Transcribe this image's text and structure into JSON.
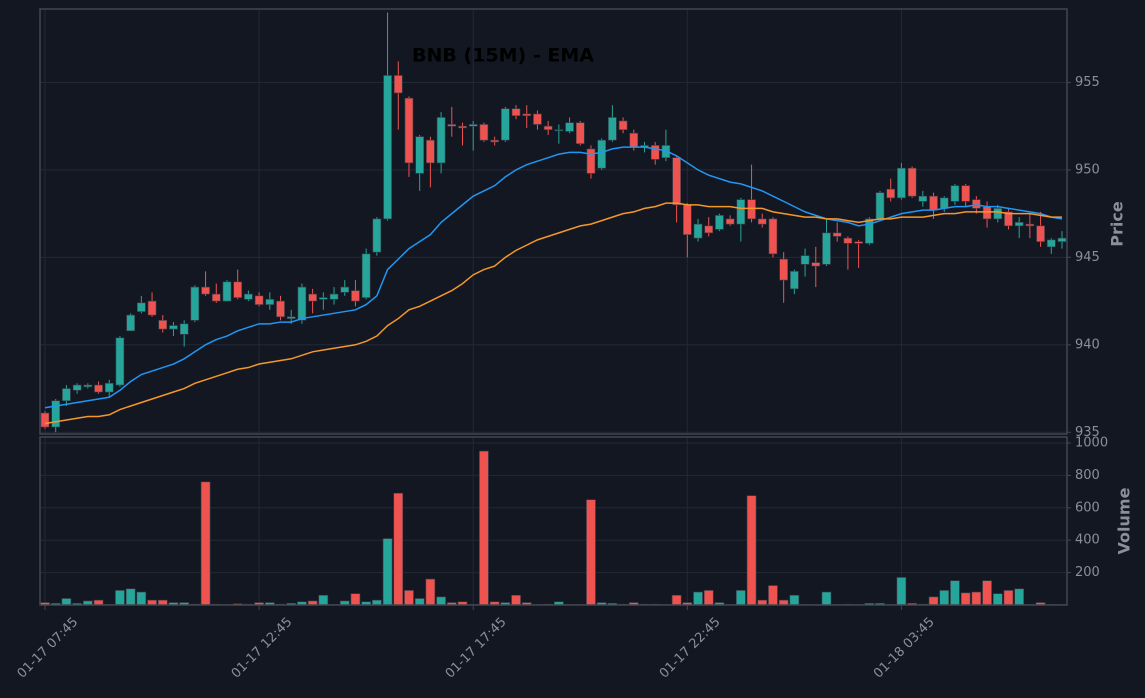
{
  "chart_data": [
    {
      "type": "candlestick",
      "title": "BNB (15M) - EMA",
      "y_label": "Price",
      "categories": [
        "01-17 07:45",
        null,
        null,
        null,
        null,
        null,
        null,
        null,
        null,
        null,
        null,
        null,
        null,
        null,
        null,
        null,
        null,
        null,
        null,
        null,
        "01-17 12:45",
        null,
        null,
        null,
        null,
        null,
        null,
        null,
        null,
        null,
        null,
        null,
        null,
        null,
        null,
        null,
        null,
        null,
        null,
        null,
        "01-17 17:45",
        null,
        null,
        null,
        null,
        null,
        null,
        null,
        null,
        null,
        null,
        null,
        null,
        null,
        null,
        null,
        null,
        null,
        null,
        null,
        "01-17 22:45",
        null,
        null,
        null,
        null,
        null,
        null,
        null,
        null,
        null,
        null,
        null,
        null,
        null,
        null,
        null,
        null,
        null,
        null,
        null,
        "01-18 03:45",
        null,
        null,
        null,
        null,
        null,
        null,
        null,
        null,
        null,
        null,
        null,
        null,
        null,
        null,
        null
      ],
      "open": [
        936.1,
        935.3,
        936.8,
        937.4,
        937.6,
        937.7,
        937.3,
        937.7,
        940.8,
        941.9,
        942.5,
        941.4,
        940.9,
        940.6,
        941.4,
        943.3,
        942.9,
        942.5,
        943.6,
        942.6,
        942.8,
        942.3,
        942.5,
        941.5,
        941.4,
        942.9,
        942.6,
        942.6,
        943.0,
        943.1,
        942.7,
        945.3,
        947.2,
        955.4,
        954.1,
        949.8,
        951.7,
        950.4,
        952.6,
        952.5,
        952.5,
        952.6,
        951.7,
        951.7,
        953.5,
        953.2,
        953.2,
        952.5,
        952.3,
        952.2,
        952.7,
        951.2,
        950.1,
        951.7,
        952.8,
        952.1,
        951.3,
        951.4,
        950.7,
        950.7,
        948.0,
        946.1,
        946.8,
        946.6,
        947.2,
        946.9,
        948.3,
        947.2,
        947.2,
        944.9,
        943.2,
        944.6,
        944.7,
        944.6,
        946.4,
        946.1,
        945.9,
        945.8,
        947.2,
        948.9,
        948.4,
        950.1,
        948.2,
        948.5,
        947.8,
        948.2,
        949.1,
        948.3,
        947.9,
        947.2,
        947.6,
        946.8,
        946.9,
        946.8,
        945.6,
        945.9
      ],
      "high": [
        936.2,
        936.9,
        937.7,
        937.8,
        937.8,
        937.9,
        938.0,
        940.5,
        941.8,
        942.8,
        943.0,
        941.7,
        941.3,
        941.4,
        943.4,
        944.2,
        943.5,
        943.7,
        944.3,
        943.1,
        943.0,
        943.0,
        942.8,
        942.0,
        943.5,
        943.2,
        943.0,
        943.3,
        943.7,
        943.7,
        945.5,
        947.3,
        959.0,
        956.2,
        954.2,
        952.0,
        951.9,
        953.3,
        953.6,
        952.7,
        952.8,
        952.7,
        951.9,
        953.6,
        953.7,
        953.7,
        953.4,
        952.8,
        952.6,
        953.0,
        952.8,
        951.4,
        951.8,
        953.7,
        953.0,
        952.3,
        951.6,
        951.6,
        952.3,
        950.8,
        948.1,
        947.2,
        947.3,
        947.5,
        947.4,
        948.4,
        950.3,
        947.5,
        947.3,
        945.3,
        944.3,
        945.5,
        945.6,
        947.2,
        947.0,
        946.2,
        946.0,
        947.3,
        948.8,
        949.5,
        950.4,
        950.2,
        948.8,
        948.7,
        948.5,
        949.2,
        949.2,
        948.5,
        948.2,
        948.0,
        947.8,
        947.3,
        947.5,
        947.6,
        946.1,
        946.5
      ],
      "low": [
        935.2,
        935.0,
        936.5,
        937.2,
        937.5,
        937.2,
        937.0,
        937.6,
        940.8,
        941.8,
        941.6,
        940.7,
        940.5,
        939.9,
        941.3,
        942.8,
        942.4,
        942.5,
        942.6,
        942.5,
        942.2,
        942.0,
        941.4,
        941.2,
        941.2,
        941.8,
        942.0,
        942.3,
        942.8,
        942.2,
        942.6,
        945.1,
        947.1,
        952.3,
        949.6,
        948.8,
        949.0,
        949.8,
        951.9,
        951.4,
        951.1,
        951.6,
        951.4,
        951.6,
        952.9,
        952.4,
        952.3,
        952.0,
        951.5,
        952.1,
        951.4,
        949.5,
        950.0,
        951.6,
        952.1,
        951.1,
        951.0,
        950.3,
        950.5,
        947.0,
        945.0,
        945.9,
        946.2,
        946.5,
        946.8,
        945.9,
        947.0,
        946.7,
        945.0,
        942.4,
        942.9,
        943.9,
        943.3,
        944.5,
        945.9,
        944.3,
        944.4,
        945.7,
        947.1,
        948.2,
        948.3,
        948.4,
        947.9,
        947.2,
        947.6,
        948.0,
        947.9,
        947.5,
        946.7,
        947.0,
        946.6,
        946.1,
        946.1,
        945.6,
        945.2,
        945.5
      ],
      "close": [
        935.3,
        936.8,
        937.5,
        937.7,
        937.7,
        937.3,
        937.8,
        940.4,
        941.7,
        942.4,
        941.7,
        940.9,
        941.1,
        941.2,
        943.3,
        942.9,
        942.5,
        943.6,
        942.7,
        942.9,
        942.3,
        942.6,
        941.6,
        941.6,
        943.3,
        942.5,
        942.7,
        942.9,
        943.3,
        942.5,
        945.2,
        947.2,
        955.4,
        954.4,
        950.4,
        951.9,
        950.4,
        953.0,
        952.5,
        952.4,
        952.6,
        951.7,
        951.6,
        953.5,
        953.1,
        953.1,
        952.6,
        952.3,
        952.3,
        952.7,
        951.5,
        949.8,
        951.7,
        953.0,
        952.3,
        951.3,
        951.4,
        950.6,
        951.4,
        948.0,
        946.3,
        946.9,
        946.4,
        947.4,
        946.9,
        948.3,
        947.2,
        946.9,
        945.2,
        943.7,
        944.2,
        945.1,
        944.5,
        946.4,
        946.2,
        945.8,
        945.8,
        947.2,
        948.7,
        948.4,
        950.1,
        948.5,
        948.5,
        947.7,
        948.4,
        949.1,
        948.2,
        947.8,
        947.2,
        947.8,
        946.8,
        947.0,
        946.8,
        945.9,
        946.0,
        946.1
      ],
      "up_color": "#26a69a",
      "down_color": "#ef5350",
      "series": [
        {
          "color": "#2196f3",
          "values": [
            936.4,
            936.5,
            936.6,
            936.7,
            936.8,
            936.9,
            937.0,
            937.4,
            937.9,
            938.3,
            938.5,
            938.7,
            938.9,
            939.2,
            939.6,
            940.0,
            940.3,
            940.5,
            940.8,
            941.0,
            941.2,
            941.2,
            941.3,
            941.3,
            941.5,
            941.6,
            941.7,
            941.8,
            941.9,
            942.0,
            942.3,
            942.8,
            944.3,
            944.9,
            945.5,
            945.9,
            946.3,
            947.0,
            947.5,
            948.0,
            948.5,
            948.8,
            949.1,
            949.6,
            950.0,
            950.3,
            950.5,
            950.7,
            950.9,
            951.0,
            951.0,
            950.9,
            951.0,
            951.2,
            951.3,
            951.3,
            951.3,
            951.2,
            951.1,
            950.8,
            950.4,
            950.0,
            949.7,
            949.5,
            949.3,
            949.2,
            949.0,
            948.8,
            948.5,
            948.2,
            947.9,
            947.6,
            947.4,
            947.2,
            947.1,
            947.0,
            946.8,
            946.9,
            947.1,
            947.3,
            947.5,
            947.6,
            947.7,
            947.7,
            947.8,
            947.9,
            947.9,
            948.0,
            947.9,
            947.9,
            947.8,
            947.7,
            947.6,
            947.5,
            947.3,
            947.2
          ]
        },
        {
          "color": "#f5972a",
          "values": [
            935.5,
            935.6,
            935.7,
            935.8,
            935.9,
            935.9,
            936.0,
            936.3,
            936.5,
            936.7,
            936.9,
            937.1,
            937.3,
            937.5,
            937.8,
            938.0,
            938.2,
            938.4,
            938.6,
            938.7,
            938.9,
            939.0,
            939.1,
            939.2,
            939.4,
            939.6,
            939.7,
            939.8,
            939.9,
            940.0,
            940.2,
            940.5,
            941.1,
            941.5,
            942.0,
            942.2,
            942.5,
            942.8,
            943.1,
            943.5,
            944.0,
            944.3,
            944.5,
            945.0,
            945.4,
            945.7,
            946.0,
            946.2,
            946.4,
            946.6,
            946.8,
            946.9,
            947.1,
            947.3,
            947.5,
            947.6,
            947.8,
            947.9,
            948.1,
            948.1,
            948.0,
            948.0,
            947.9,
            947.9,
            947.9,
            947.8,
            947.8,
            947.8,
            947.6,
            947.5,
            947.4,
            947.3,
            947.3,
            947.2,
            947.2,
            947.1,
            947.0,
            947.1,
            947.2,
            947.2,
            947.3,
            947.3,
            947.3,
            947.4,
            947.5,
            947.5,
            947.6,
            947.6,
            947.6,
            947.6,
            947.5,
            947.5,
            947.5,
            947.4,
            947.3,
            947.3
          ]
        }
      ],
      "ylim": [
        934.9,
        959.2
      ],
      "yticks": [
        935,
        940,
        945,
        950,
        955
      ],
      "grid": true
    },
    {
      "type": "bar",
      "y_label": "Volume",
      "values": [
        15,
        10,
        40,
        10,
        25,
        30,
        3,
        90,
        100,
        80,
        30,
        30,
        15,
        15,
        5,
        760,
        5,
        3,
        8,
        5,
        15,
        15,
        5,
        10,
        20,
        25,
        60,
        3,
        25,
        70,
        20,
        30,
        410,
        690,
        90,
        40,
        160,
        50,
        15,
        20,
        3,
        950,
        20,
        15,
        60,
        15,
        3,
        5,
        20,
        3,
        3,
        650,
        15,
        10,
        5,
        15,
        5,
        5,
        3,
        60,
        15,
        80,
        90,
        15,
        3,
        90,
        675,
        30,
        120,
        30,
        60,
        3,
        3,
        80,
        3,
        5,
        3,
        10,
        10,
        3,
        170,
        10,
        5,
        50,
        90,
        150,
        75,
        80,
        150,
        70,
        90,
        100,
        3,
        15,
        3,
        3
      ],
      "ylim": [
        0,
        1037
      ],
      "yticks": [
        200,
        400,
        600,
        800,
        1000
      ],
      "grid": true
    }
  ]
}
